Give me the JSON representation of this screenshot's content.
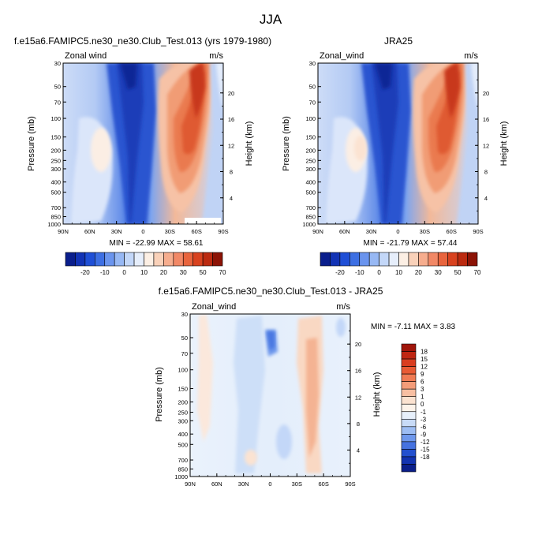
{
  "page_title": "JJA",
  "chart_data": [
    {
      "id": "model",
      "type": "heatmap",
      "title": "f.e15a6.FAMIPC5.ne30_ne30.Club_Test.013 (yrs 1979-1980)",
      "subtitle_left": "Zonal wind",
      "subtitle_right": "m/s",
      "xlabel": "",
      "ylabel": "Pressure (mb)",
      "ylabel_right": "Height (km)",
      "x_ticks": [
        "90N",
        "60N",
        "30N",
        "0",
        "30S",
        "60S",
        "90S"
      ],
      "y_ticks": [
        "30",
        "50",
        "70",
        "100",
        "150",
        "200",
        "250",
        "300",
        "400",
        "500",
        "700",
        "850",
        "1000"
      ],
      "y_right_ticks": [
        "20",
        "16",
        "12",
        "8",
        "4"
      ],
      "stats": "MIN = -22.99  MAX =  58.61",
      "min": -22.99,
      "max": 58.61
    },
    {
      "id": "obs",
      "type": "heatmap",
      "title": "JRA25",
      "subtitle_left": "Zonal_wind",
      "subtitle_right": "m/s",
      "xlabel": "",
      "ylabel": "Pressure (mb)",
      "ylabel_right": "Height (km)",
      "x_ticks": [
        "90N",
        "60N",
        "30N",
        "0",
        "30S",
        "60S",
        "90S"
      ],
      "y_ticks": [
        "30",
        "50",
        "70",
        "100",
        "150",
        "200",
        "250",
        "300",
        "400",
        "500",
        "700",
        "850",
        "1000"
      ],
      "y_right_ticks": [
        "20",
        "16",
        "12",
        "8",
        "4"
      ],
      "stats": "MIN = -21.79  MAX =  57.44",
      "min": -21.79,
      "max": 57.44
    },
    {
      "id": "diff",
      "type": "heatmap",
      "title": "f.e15a6.FAMIPC5.ne30_ne30.Club_Test.013 - JRA25",
      "subtitle_left": "Zonal_wind",
      "subtitle_right": "m/s",
      "xlabel": "",
      "ylabel": "Pressure (mb)",
      "ylabel_right": "Height (km)",
      "x_ticks": [
        "90N",
        "60N",
        "30N",
        "0",
        "30S",
        "60S",
        "90S"
      ],
      "y_ticks": [
        "30",
        "50",
        "70",
        "100",
        "150",
        "200",
        "250",
        "300",
        "400",
        "500",
        "700",
        "850",
        "1000"
      ],
      "y_right_ticks": [
        "20",
        "16",
        "12",
        "8",
        "4"
      ],
      "stats": "MIN = -7.11  MAX =   3.83",
      "min": -7.11,
      "max": 3.83
    }
  ],
  "colorbar_main": {
    "labels": [
      "-20",
      "-10",
      "0",
      "10",
      "20",
      "30",
      "50",
      "70"
    ],
    "colors": [
      "#0a1e8c",
      "#1233b5",
      "#1f4fd6",
      "#3d6fe3",
      "#6a94ee",
      "#97b8f4",
      "#c3d7f8",
      "#e6eefb",
      "#fcefe4",
      "#f9d1b9",
      "#f6ad8e",
      "#f18866",
      "#e8643d",
      "#d8421f",
      "#bb2a10",
      "#8c1306"
    ]
  },
  "colorbar_diff": {
    "labels": [
      "18",
      "15",
      "12",
      "9",
      "6",
      "3",
      "1",
      "0",
      "-1",
      "-3",
      "-6",
      "-9",
      "-12",
      "-15",
      "-18"
    ],
    "colors": [
      "#a0150a",
      "#c02612",
      "#d93d20",
      "#e85a34",
      "#f07b54",
      "#f49c79",
      "#f8bfa2",
      "#fbe2d0",
      "#fdf3ea",
      "#e7f0fb",
      "#c8dbf7",
      "#9dbdf3",
      "#6f98ec",
      "#4572e0",
      "#2350cf",
      "#1233b0",
      "#0a1e8a"
    ]
  }
}
